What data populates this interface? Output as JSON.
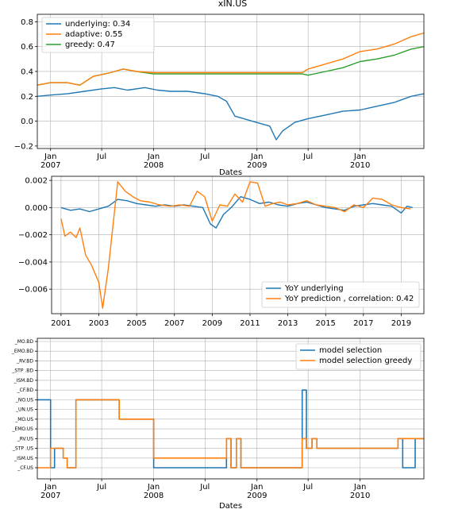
{
  "figure": {
    "title": "xIN.US"
  },
  "panels": [
    {
      "title": "xIN.US",
      "xlabel": "Dates",
      "xticks": [
        {
          "l1": "Jan",
          "l2": "2007"
        },
        {
          "l1": "Jul",
          "l2": ""
        },
        {
          "l1": "Jan",
          "l2": "2008"
        },
        {
          "l1": "Jul",
          "l2": ""
        },
        {
          "l1": "Jan",
          "l2": "2009"
        },
        {
          "l1": "Jul",
          "l2": ""
        },
        {
          "l1": "Jan",
          "l2": "2010"
        }
      ],
      "yticks": [
        "0.8",
        "0.6",
        "0.4",
        "0.2",
        "0.0",
        "−0.2"
      ],
      "legend": [
        "underlying: 0.34",
        "adaptive: 0.55",
        "greedy: 0.47"
      ]
    },
    {
      "xticks": [
        "2001",
        "2003",
        "2005",
        "2007",
        "2009",
        "2011",
        "2013",
        "2015",
        "2017",
        "2019"
      ],
      "yticks": [
        "0.002",
        "0.000",
        "−0.002",
        "−0.004",
        "−0.006"
      ],
      "legend": [
        "YoY underlying",
        "YoY prediction , correlation: 0.42"
      ]
    },
    {
      "xlabel": "Dates",
      "xticks": [
        {
          "l1": "Jan",
          "l2": "2007"
        },
        {
          "l1": "Jul",
          "l2": ""
        },
        {
          "l1": "Jan",
          "l2": "2008"
        },
        {
          "l1": "Jul",
          "l2": ""
        },
        {
          "l1": "Jan",
          "l2": "2009"
        },
        {
          "l1": "Jul",
          "l2": ""
        },
        {
          "l1": "Jan",
          "l2": "2010"
        }
      ],
      "yticks": [
        "_MO.BD",
        "_EMO.BD",
        "_RV.BD",
        "_STP .BD",
        "_ISM.BD",
        "_CF.BD",
        "_NO.US",
        "_UN.US",
        "_MO.US",
        "_EMO.US",
        "_RV.US",
        "_STP .US",
        "_ISM.US",
        "_CF.US"
      ],
      "legend": [
        "model selection",
        "model selection greedy"
      ]
    }
  ],
  "colors": {
    "blue": "#1f77b4",
    "orange": "#ff7f0e",
    "green": "#2ca02c",
    "grid": "#b0b0b0"
  },
  "chart_data": [
    {
      "type": "line",
      "title": "xIN.US",
      "xlabel": "Dates",
      "ylabel": "",
      "x_range": [
        "2006-11-15",
        "2010-08-15"
      ],
      "ylim": [
        -0.22,
        0.86
      ],
      "grid": true,
      "legend_position": "top-left",
      "series": [
        {
          "name": "underlying: 0.34",
          "color": "#1f77b4",
          "x": [
            "2006-11-15",
            "2007-01-01",
            "2007-03-01",
            "2007-05-01",
            "2007-07-01",
            "2007-08-15",
            "2007-10-01",
            "2007-12-01",
            "2008-01-15",
            "2008-03-01",
            "2008-05-01",
            "2008-07-01",
            "2008-08-15",
            "2008-09-15",
            "2008-10-15",
            "2008-11-15",
            "2008-12-15",
            "2009-01-15",
            "2009-02-15",
            "2009-03-10",
            "2009-04-01",
            "2009-05-15",
            "2009-07-01",
            "2009-09-01",
            "2009-11-01",
            "2010-01-01",
            "2010-03-01",
            "2010-05-01",
            "2010-07-01",
            "2010-08-15"
          ],
          "y": [
            0.2,
            0.21,
            0.22,
            0.24,
            0.26,
            0.27,
            0.25,
            0.27,
            0.25,
            0.24,
            0.24,
            0.22,
            0.2,
            0.16,
            0.04,
            0.02,
            0.0,
            -0.02,
            -0.04,
            -0.15,
            -0.08,
            -0.01,
            0.02,
            0.05,
            0.08,
            0.09,
            0.12,
            0.15,
            0.2,
            0.22
          ]
        },
        {
          "name": "adaptive: 0.55",
          "color": "#ff7f0e",
          "x": [
            "2006-11-15",
            "2007-01-01",
            "2007-03-01",
            "2007-04-15",
            "2007-06-01",
            "2007-08-01",
            "2007-09-15",
            "2007-11-01",
            "2008-01-01",
            "2009-06-10",
            "2009-07-01",
            "2009-09-01",
            "2009-11-01",
            "2010-01-01",
            "2010-03-01",
            "2010-05-01",
            "2010-07-01",
            "2010-08-15"
          ],
          "y": [
            0.29,
            0.31,
            0.31,
            0.29,
            0.36,
            0.39,
            0.42,
            0.4,
            0.39,
            0.39,
            0.42,
            0.46,
            0.5,
            0.56,
            0.58,
            0.62,
            0.68,
            0.71
          ]
        },
        {
          "name": "greedy: 0.47",
          "color": "#2ca02c",
          "x": [
            "2006-11-15",
            "2007-01-01",
            "2007-03-01",
            "2007-04-15",
            "2007-06-01",
            "2007-08-01",
            "2007-09-15",
            "2007-11-01",
            "2008-01-01",
            "2009-06-10",
            "2009-07-01",
            "2009-09-01",
            "2009-11-01",
            "2010-01-01",
            "2010-03-01",
            "2010-05-01",
            "2010-07-01",
            "2010-08-15"
          ],
          "y": [
            0.29,
            0.31,
            0.31,
            0.29,
            0.36,
            0.39,
            0.42,
            0.4,
            0.38,
            0.38,
            0.37,
            0.4,
            0.43,
            0.48,
            0.5,
            0.53,
            0.58,
            0.6
          ]
        }
      ]
    },
    {
      "type": "line",
      "title": "",
      "xlabel": "",
      "ylabel": "",
      "xlim": [
        2000.5,
        2020.2
      ],
      "ylim": [
        -0.0078,
        0.0023
      ],
      "grid": true,
      "legend_position": "lower-right",
      "series": [
        {
          "name": "YoY underlying",
          "color": "#1f77b4",
          "x": [
            2001.0,
            2001.5,
            2002.0,
            2002.5,
            2003.0,
            2003.5,
            2004.0,
            2004.5,
            2005.0,
            2005.5,
            2006.0,
            2006.5,
            2007.0,
            2007.5,
            2008.0,
            2008.5,
            2008.9,
            2009.2,
            2009.6,
            2010.0,
            2010.5,
            2011.0,
            2011.5,
            2012.0,
            2012.5,
            2013.0,
            2013.5,
            2014.0,
            2014.5,
            2015.0,
            2015.5,
            2016.0,
            2016.5,
            2017.0,
            2017.5,
            2018.0,
            2018.5,
            2019.0,
            2019.3,
            2019.6
          ],
          "y": [
            0.0,
            -0.0002,
            -0.0001,
            -0.0003,
            -0.0001,
            0.0001,
            0.0006,
            0.0005,
            0.0003,
            0.0002,
            0.0001,
            0.0002,
            0.0001,
            0.0002,
            0.0001,
            0.0,
            -0.0012,
            -0.0015,
            -0.0005,
            0.0,
            0.0008,
            0.0006,
            0.0003,
            0.0004,
            0.0002,
            0.0001,
            0.0003,
            0.0004,
            0.0002,
            0.0,
            -0.0001,
            -0.0002,
            0.0001,
            0.0002,
            0.0003,
            0.0002,
            0.0001,
            -0.0004,
            0.0001,
            0.0
          ]
        },
        {
          "name": "YoY prediction , correlation: 0.42",
          "color": "#ff7f0e",
          "x": [
            2001.0,
            2001.2,
            2001.5,
            2001.8,
            2002.0,
            2002.3,
            2002.6,
            2003.0,
            2003.2,
            2003.5,
            2004.0,
            2004.4,
            2004.8,
            2005.2,
            2005.7,
            2006.2,
            2006.8,
            2007.3,
            2007.8,
            2008.2,
            2008.6,
            2009.0,
            2009.4,
            2009.8,
            2010.2,
            2010.6,
            2011.0,
            2011.4,
            2011.8,
            2012.2,
            2012.6,
            2013.0,
            2013.5,
            2014.0,
            2014.5,
            2015.0,
            2015.5,
            2016.0,
            2016.5,
            2017.0,
            2017.5,
            2018.0,
            2018.5,
            2019.0,
            2019.5
          ],
          "y": [
            -0.0008,
            -0.0021,
            -0.0018,
            -0.0022,
            -0.0015,
            -0.0035,
            -0.0042,
            -0.0055,
            -0.0074,
            -0.0045,
            0.0019,
            0.0012,
            0.0008,
            0.0005,
            0.0004,
            0.0002,
            0.0001,
            0.0002,
            0.0001,
            0.0012,
            0.0008,
            -0.001,
            0.0002,
            0.0001,
            0.001,
            0.0004,
            0.0019,
            0.0018,
            0.0001,
            0.0003,
            0.0004,
            0.0002,
            0.0003,
            0.0005,
            0.0002,
            0.0001,
            0.0,
            -0.0003,
            0.0002,
            0.0,
            0.0007,
            0.0006,
            0.0002,
            0.0,
            -0.0001
          ]
        }
      ]
    },
    {
      "type": "line",
      "title": "",
      "xlabel": "Dates",
      "ylabel": "",
      "x_range": [
        "2006-11-15",
        "2010-08-15"
      ],
      "y_categories": [
        "_MO.BD",
        "_EMO.BD",
        "_RV.BD",
        "_STP .BD",
        "_ISM.BD",
        "_CF.BD",
        "_NO.US",
        "_UN.US",
        "_MO.US",
        "_EMO.US",
        "_RV.US",
        "_STP .US",
        "_ISM.US",
        "_CF.US"
      ],
      "grid": true,
      "legend_position": "top-right",
      "series": [
        {
          "name": "model selection",
          "color": "#1f77b4",
          "steps": [
            [
              "2006-11-15",
              "_NO.US"
            ],
            [
              "2007-01-01",
              "_CF.US"
            ],
            [
              "2007-01-15",
              "_STP .US"
            ],
            [
              "2007-02-15",
              "_ISM.US"
            ],
            [
              "2007-03-01",
              "_CF.US"
            ],
            [
              "2007-04-01",
              "_NO.US"
            ],
            [
              "2007-09-01",
              "_MO.US"
            ],
            [
              "2008-01-01",
              "_CF.US"
            ],
            [
              "2008-07-01",
              "_CF.US"
            ],
            [
              "2008-09-15",
              "_RV.US"
            ],
            [
              "2008-10-01",
              "_CF.US"
            ],
            [
              "2008-10-20",
              "_RV.US"
            ],
            [
              "2008-11-05",
              "_CF.US"
            ],
            [
              "2009-06-10",
              "_CF.BD"
            ],
            [
              "2009-06-25",
              "_STP .US"
            ],
            [
              "2009-07-15",
              "_RV.US"
            ],
            [
              "2009-08-01",
              "_STP .US"
            ],
            [
              "2010-05-15",
              "_RV.US"
            ],
            [
              "2010-06-01",
              "_CF.US"
            ],
            [
              "2010-07-15",
              "_RV.US"
            ],
            [
              "2010-08-15",
              "_RV.US"
            ]
          ]
        },
        {
          "name": "model selection greedy",
          "color": "#ff7f0e",
          "steps": [
            [
              "2006-11-15",
              "_CF.US"
            ],
            [
              "2007-01-01",
              "_STP .US"
            ],
            [
              "2007-02-15",
              "_ISM.US"
            ],
            [
              "2007-03-01",
              "_CF.US"
            ],
            [
              "2007-04-01",
              "_NO.US"
            ],
            [
              "2007-09-01",
              "_MO.US"
            ],
            [
              "2008-01-01",
              "_ISM.US"
            ],
            [
              "2008-07-01",
              "_ISM.US"
            ],
            [
              "2008-09-15",
              "_RV.US"
            ],
            [
              "2008-10-01",
              "_CF.US"
            ],
            [
              "2008-10-20",
              "_RV.US"
            ],
            [
              "2008-11-05",
              "_CF.US"
            ],
            [
              "2009-06-10",
              "_RV.US"
            ],
            [
              "2009-06-25",
              "_STP .US"
            ],
            [
              "2009-07-15",
              "_RV.US"
            ],
            [
              "2009-08-01",
              "_STP .US"
            ],
            [
              "2010-05-15",
              "_RV.US"
            ],
            [
              "2010-08-15",
              "_RV.US"
            ]
          ]
        }
      ]
    }
  ]
}
